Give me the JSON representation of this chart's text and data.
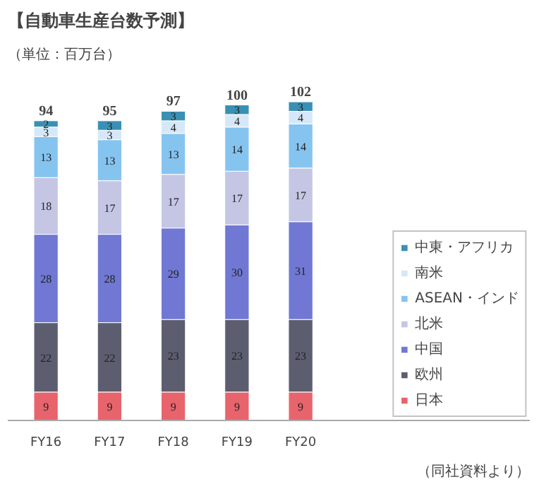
{
  "chart_data": {
    "type": "bar",
    "stacked": true,
    "title": "【自動車生産台数予測】",
    "subtitle": "（単位：百万台）",
    "categories": [
      "FY16",
      "FY17",
      "FY18",
      "FY19",
      "FY20"
    ],
    "series": [
      {
        "name": "日本",
        "color": "#e8646c",
        "values": [
          9,
          9,
          9,
          9,
          9
        ]
      },
      {
        "name": "欧州",
        "color": "#5c5e70",
        "values": [
          22,
          22,
          23,
          23,
          23
        ]
      },
      {
        "name": "中国",
        "color": "#7078d4",
        "values": [
          28,
          28,
          29,
          30,
          31
        ]
      },
      {
        "name": "北米",
        "color": "#c4c6e4",
        "values": [
          18,
          17,
          17,
          17,
          17
        ]
      },
      {
        "name": "ASEAN・インド",
        "color": "#86c4f0",
        "values": [
          13,
          13,
          13,
          14,
          14
        ]
      },
      {
        "name": "南米",
        "color": "#d6e8f8",
        "values": [
          3,
          3,
          4,
          4,
          4
        ]
      },
      {
        "name": "中東・アフリカ",
        "color": "#3a90b4",
        "values": [
          2,
          3,
          3,
          3,
          3
        ]
      }
    ],
    "data_labels": true,
    "totals": [
      "94",
      "95",
      "97",
      "100",
      "102"
    ],
    "legend": "right",
    "grid": false,
    "annotations": [
      "（同社資料より）"
    ]
  }
}
